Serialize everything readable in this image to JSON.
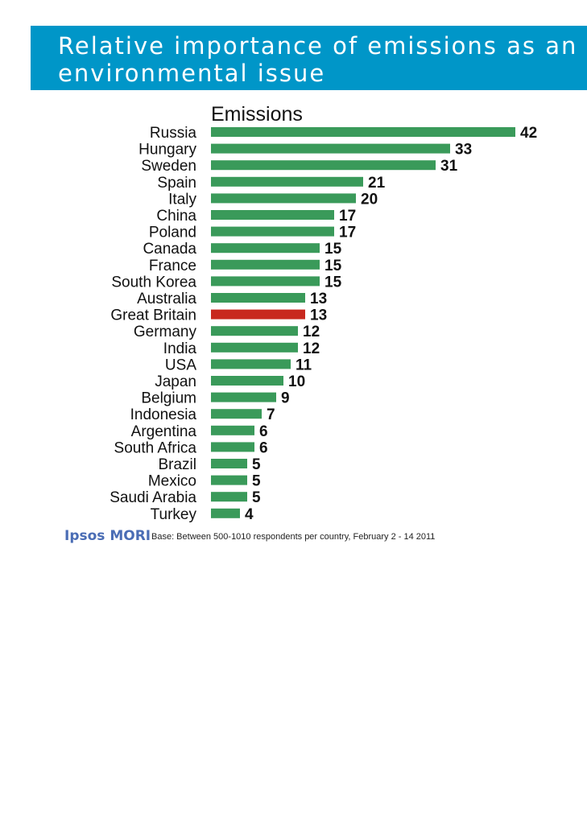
{
  "header": {
    "title": "Relative importance of emissions as an environmental issue"
  },
  "colors": {
    "header_bg": "#0096c8",
    "bar_default": "#3a9a5a",
    "bar_highlight": "#c8281e"
  },
  "chart_data": {
    "type": "bar",
    "orientation": "horizontal",
    "series_label": "Emissions",
    "categories": [
      "Russia",
      "Hungary",
      "Sweden",
      "Spain",
      "Italy",
      "China",
      "Poland",
      "Canada",
      "France",
      "South Korea",
      "Australia",
      "Great Britain",
      "Germany",
      "India",
      "USA",
      "Japan",
      "Belgium",
      "Indonesia",
      "Argentina",
      "South Africa",
      "Brazil",
      "Mexico",
      "Saudi Arabia",
      "Turkey"
    ],
    "values": [
      42,
      33,
      31,
      21,
      20,
      17,
      17,
      15,
      15,
      15,
      13,
      13,
      12,
      12,
      11,
      10,
      9,
      7,
      6,
      6,
      5,
      5,
      5,
      4
    ],
    "highlight": "Great Britain",
    "xlim": [
      0,
      42
    ]
  },
  "footer": {
    "logo": "Ipsos MORI",
    "note": "Base: Between 500-1010 respondents per country, February 2 - 14 2011"
  }
}
